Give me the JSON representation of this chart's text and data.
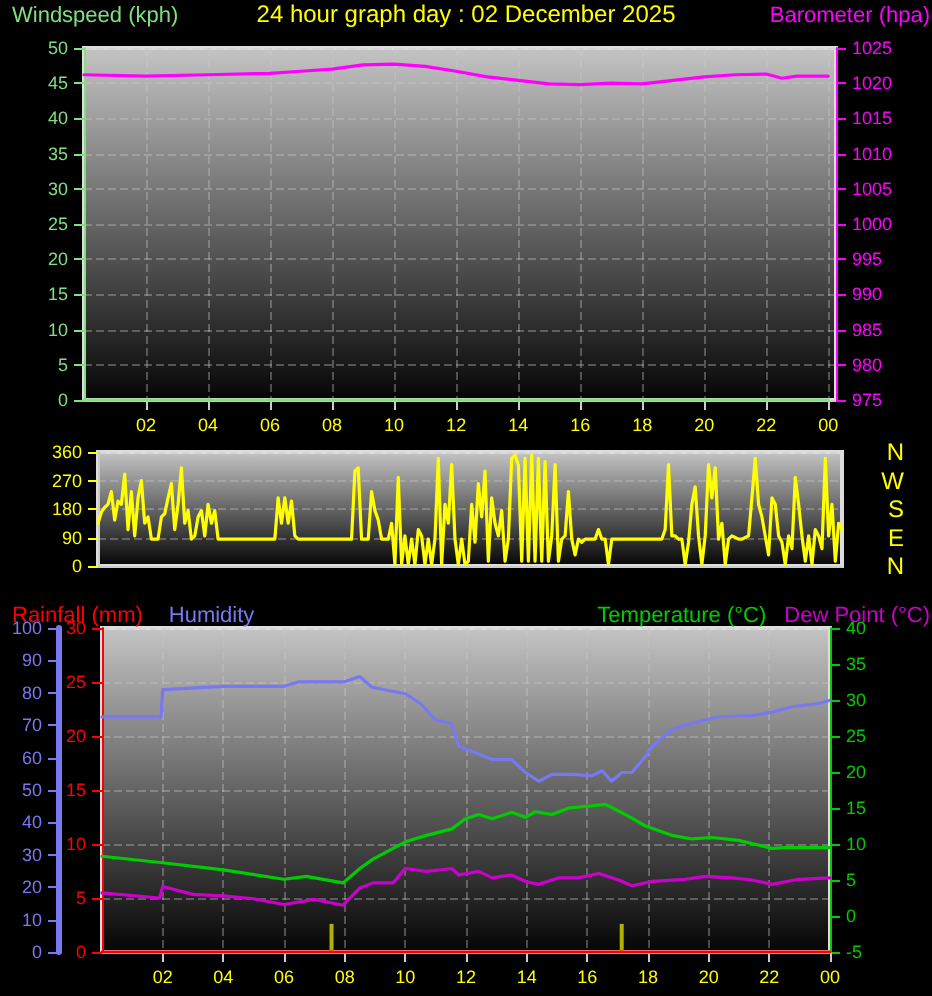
{
  "chart_data": [
    {
      "type": "line",
      "title": "24 hour graph day : 02 December 2025",
      "legend": "top",
      "grid": true,
      "marker": "none",
      "line_style": "solid",
      "xlim": [
        "2025-12-02T00:00",
        "2025-12-03T00:15"
      ],
      "xticks": [
        {
          "value": "2025-12-02T02:00",
          "label": "02"
        },
        {
          "value": "2025-12-02T04:00",
          "label": "04"
        },
        {
          "value": "2025-12-02T06:00",
          "label": "06"
        },
        {
          "value": "2025-12-02T08:00",
          "label": "08"
        },
        {
          "value": "2025-12-02T10:00",
          "label": "10"
        },
        {
          "value": "2025-12-02T12:00",
          "label": "12"
        },
        {
          "value": "2025-12-02T14:00",
          "label": "14"
        },
        {
          "value": "2025-12-02T16:00",
          "label": "16"
        },
        {
          "value": "2025-12-02T18:00",
          "label": "18"
        },
        {
          "value": "2025-12-02T20:00",
          "label": "20"
        },
        {
          "value": "2025-12-02T22:00",
          "label": "22"
        },
        {
          "value": "2025-12-03T00:00",
          "label": "00"
        }
      ],
      "ylim": [
        0,
        50
      ],
      "yticks": [
        0,
        5,
        10,
        15,
        20,
        25,
        30,
        35,
        40,
        45,
        50
      ],
      "y2lim": [
        975,
        1025
      ],
      "y2ticks": [
        975,
        980,
        985,
        990,
        995,
        1000,
        1005,
        1010,
        1015,
        1020,
        1025
      ],
      "series": [
        {
          "name": "Windspeed (kph)",
          "color": "#80e080",
          "x": [
            "2025-12-02T00:00",
            "2025-12-03T00:00"
          ],
          "values": [
            0,
            0
          ]
        },
        {
          "name": "Barometer (hpa)",
          "color": "#ff00ff",
          "axis": "y2",
          "x": [
            "2025-12-02T00:00",
            "2025-12-02T02:00",
            "2025-12-02T04:00",
            "2025-12-02T06:00",
            "2025-12-02T07:00",
            "2025-12-02T08:00",
            "2025-12-02T09:00",
            "2025-12-02T10:00",
            "2025-12-02T11:00",
            "2025-12-02T12:00",
            "2025-12-02T13:00",
            "2025-12-02T14:00",
            "2025-12-02T15:00",
            "2025-12-02T16:00",
            "2025-12-02T17:00",
            "2025-12-02T18:00",
            "2025-12-02T19:00",
            "2025-12-02T20:00",
            "2025-12-02T21:00",
            "2025-12-02T22:00",
            "2025-12-02T22:30",
            "2025-12-02T23:00",
            "2025-12-03T00:00"
          ],
          "values": [
            1021.2,
            1021.0,
            1021.2,
            1021.4,
            1021.7,
            1022.0,
            1022.6,
            1022.7,
            1022.4,
            1021.7,
            1020.9,
            1020.4,
            1019.9,
            1019.8,
            1020.0,
            1019.9,
            1020.4,
            1020.9,
            1021.2,
            1021.3,
            1020.7,
            1021.0,
            1021.0
          ]
        }
      ]
    },
    {
      "type": "line",
      "grid": "y",
      "marker": "none",
      "line_style": "solid",
      "tick_labels": "y",
      "categories": [
        null,
        null,
        null,
        null,
        null,
        null,
        null,
        null,
        null,
        null,
        null,
        null,
        null,
        null,
        null,
        null,
        null,
        null,
        null,
        null,
        null,
        null,
        null,
        null,
        null,
        null,
        null,
        null,
        null,
        null,
        null,
        null,
        null,
        null,
        null,
        null,
        null,
        null,
        null,
        null,
        null,
        null,
        null,
        null,
        null,
        null,
        null,
        null,
        null,
        null,
        null,
        null,
        null,
        null,
        null,
        null,
        null,
        null,
        null,
        null,
        null,
        null,
        null,
        null,
        null,
        null,
        null,
        null,
        null,
        null,
        null,
        null,
        null,
        null,
        null,
        null,
        null,
        null,
        null,
        null,
        null,
        null,
        null,
        null,
        null,
        null,
        null,
        null,
        null,
        null,
        null,
        null,
        null,
        null,
        null,
        null,
        null,
        null,
        null,
        null,
        null,
        null,
        null,
        null,
        null,
        null,
        null,
        null,
        null,
        null,
        null,
        null,
        null,
        null,
        null,
        null,
        null,
        null,
        null,
        null,
        null,
        null,
        null,
        null,
        null,
        null,
        null,
        null,
        null,
        null,
        null,
        null,
        null,
        null,
        null,
        null,
        null,
        null,
        null,
        null,
        null,
        null,
        null,
        null,
        null,
        null,
        null,
        null,
        null,
        null,
        null,
        null,
        null,
        null,
        null,
        null,
        null,
        null,
        null,
        null,
        null,
        null,
        null,
        null,
        null,
        null,
        null,
        null,
        null,
        null,
        null,
        null,
        null,
        null,
        null,
        null,
        null,
        null,
        null,
        null,
        null,
        null,
        null,
        null,
        null,
        null,
        null,
        null,
        null,
        null,
        null,
        null,
        null,
        null,
        null,
        null,
        null,
        null,
        null,
        null,
        null,
        null,
        null,
        null,
        null,
        null,
        null,
        null,
        null,
        null,
        null,
        null,
        null,
        null,
        null,
        null,
        null,
        null,
        null,
        null,
        null,
        null,
        null,
        null
      ],
      "ylim": [
        0,
        360
      ],
      "yticks": [
        0,
        90,
        180,
        270,
        360
      ],
      "annotations": [
        "N",
        "W",
        "S",
        "E",
        "N"
      ],
      "series": [
        {
          "color": "#ffff00",
          "values": [
            135,
            170,
            185,
            195,
            235,
            145,
            205,
            195,
            290,
            115,
            235,
            95,
            215,
            270,
            135,
            155,
            85,
            85,
            85,
            155,
            165,
            215,
            260,
            115,
            195,
            310,
            135,
            175,
            85,
            95,
            155,
            175,
            95,
            195,
            135,
            175,
            85,
            85,
            85,
            85,
            85,
            85,
            85,
            85,
            85,
            85,
            85,
            85,
            85,
            85,
            85,
            85,
            85,
            85,
            215,
            135,
            215,
            135,
            205,
            95,
            85,
            85,
            85,
            85,
            85,
            85,
            85,
            85,
            85,
            85,
            85,
            85,
            85,
            85,
            85,
            85,
            85,
            300,
            310,
            85,
            85,
            85,
            235,
            175,
            145,
            85,
            85,
            85,
            135,
            5,
            280,
            5,
            95,
            5,
            85,
            5,
            115,
            95,
            5,
            85,
            5,
            85,
            340,
            5,
            195,
            135,
            320,
            85,
            5,
            85,
            5,
            15,
            195,
            75,
            260,
            155,
            300,
            15,
            215,
            135,
            95,
            175,
            15,
            85,
            340,
            350,
            320,
            15,
            340,
            15,
            350,
            15,
            340,
            15,
            330,
            15,
            95,
            320,
            15,
            85,
            95,
            235,
            85,
            35,
            85,
            75,
            85,
            85,
            85,
            85,
            115,
            85,
            85,
            5,
            85,
            85,
            85,
            85,
            85,
            85,
            85,
            85,
            85,
            85,
            85,
            85,
            85,
            85,
            85,
            85,
            115,
            320,
            95,
            95,
            85,
            85,
            5,
            75,
            195,
            250,
            95,
            5,
            95,
            320,
            215,
            310,
            85,
            135,
            5,
            85,
            95,
            90,
            85,
            85,
            90,
            95,
            215,
            340,
            195,
            155,
            95,
            35,
            215,
            195,
            95,
            75,
            5,
            95,
            55,
            280,
            195,
            95,
            15,
            95,
            5,
            115,
            95,
            55,
            340,
            95,
            195,
            15,
            135,
            115
          ]
        }
      ]
    },
    {
      "type": "line",
      "legend": "top",
      "grid": true,
      "marker": "none",
      "line_style": "solid",
      "xlim": [
        "2025-12-02T00:00",
        "2025-12-03T00:00"
      ],
      "xticks": [
        {
          "value": "2025-12-02T02:00",
          "label": "02"
        },
        {
          "value": "2025-12-02T04:00",
          "label": "04"
        },
        {
          "value": "2025-12-02T06:00",
          "label": "06"
        },
        {
          "value": "2025-12-02T08:00",
          "label": "08"
        },
        {
          "value": "2025-12-02T10:00",
          "label": "10"
        },
        {
          "value": "2025-12-02T12:00",
          "label": "12"
        },
        {
          "value": "2025-12-02T14:00",
          "label": "14"
        },
        {
          "value": "2025-12-02T16:00",
          "label": "16"
        },
        {
          "value": "2025-12-02T18:00",
          "label": "18"
        },
        {
          "value": "2025-12-02T20:00",
          "label": "20"
        },
        {
          "value": "2025-12-02T22:00",
          "label": "22"
        },
        {
          "value": "2025-12-03T00:00",
          "label": "00"
        }
      ],
      "ylim": [
        0,
        30
      ],
      "yticks": [
        0,
        5,
        10,
        15,
        20,
        25,
        30
      ],
      "y3lim": [
        0,
        100
      ],
      "y3ticks": [
        0,
        10,
        20,
        30,
        40,
        50,
        60,
        70,
        80,
        90,
        100
      ],
      "y2lim": [
        -5,
        40
      ],
      "y2ticks": [
        -5,
        0,
        5,
        10,
        15,
        20,
        25,
        30,
        35,
        40
      ],
      "series": [
        {
          "name": "Rainfall (mm)",
          "color": "#ff0000",
          "x": [
            "2025-12-02T00:00",
            "2025-12-03T00:00"
          ],
          "values": [
            0,
            0
          ]
        },
        {
          "name": "Humidity",
          "color": "#7878f0",
          "axis": "y3",
          "x": [
            "2025-12-02T00:00",
            "2025-12-02T01:57",
            "2025-12-02T02:00",
            "2025-12-02T04:00",
            "2025-12-02T06:00",
            "2025-12-02T06:30",
            "2025-12-02T08:00",
            "2025-12-02T08:30",
            "2025-12-02T08:54",
            "2025-12-02T10:00",
            "2025-12-02T10:30",
            "2025-12-02T11:00",
            "2025-12-02T11:30",
            "2025-12-02T11:46",
            "2025-12-02T12:52",
            "2025-12-02T13:30",
            "2025-12-02T13:58",
            "2025-12-02T14:24",
            "2025-12-02T14:50",
            "2025-12-02T15:30",
            "2025-12-02T16:09",
            "2025-12-02T16:29",
            "2025-12-02T16:48",
            "2025-12-02T17:08",
            "2025-12-02T17:28",
            "2025-12-02T17:55",
            "2025-12-02T18:08",
            "2025-12-02T18:47",
            "2025-12-02T19:27",
            "2025-12-02T20:20",
            "2025-12-02T21:26",
            "2025-12-02T22:05",
            "2025-12-02T22:45",
            "2025-12-02T23:38",
            "2025-12-03T00:00"
          ],
          "values": [
            72.6,
            72.6,
            81,
            82,
            82,
            83.4,
            83.4,
            85,
            81.7,
            79.7,
            76.7,
            71.6,
            70.6,
            63.5,
            59.4,
            59.4,
            55.4,
            52.7,
            54.8,
            54.8,
            54.4,
            56,
            52.7,
            55.4,
            55.4,
            60.4,
            63.5,
            68.6,
            70.6,
            72.6,
            73,
            74,
            75.7,
            76.7,
            77.7
          ]
        },
        {
          "name": "Temperature (°C)",
          "color": "#00cc00",
          "axis": "y2",
          "x": [
            "2025-12-02T00:00",
            "2025-12-02T02:00",
            "2025-12-02T04:00",
            "2025-12-02T06:00",
            "2025-12-02T06:44",
            "2025-12-02T07:57",
            "2025-12-02T08:30",
            "2025-12-02T08:56",
            "2025-12-02T09:36",
            "2025-12-02T10:00",
            "2025-12-02T10:42",
            "2025-12-02T11:32",
            "2025-12-02T11:59",
            "2025-12-02T12:25",
            "2025-12-02T12:52",
            "2025-12-02T13:30",
            "2025-12-02T13:58",
            "2025-12-02T14:17",
            "2025-12-02T14:50",
            "2025-12-02T15:23",
            "2025-12-02T16:09",
            "2025-12-02T16:36",
            "2025-12-02T17:15",
            "2025-12-02T17:55",
            "2025-12-02T18:47",
            "2025-12-02T19:27",
            "2025-12-02T20:06",
            "2025-12-02T20:59",
            "2025-12-02T22:05",
            "2025-12-02T22:32",
            "2025-12-03T00:00"
          ],
          "values": [
            8.3,
            7.4,
            6.4,
            5.1,
            5.5,
            4.6,
            6.6,
            7.9,
            9.4,
            10.3,
            11.2,
            12.1,
            13.5,
            14.1,
            13.5,
            14.4,
            13.7,
            14.5,
            14.1,
            15,
            15.3,
            15.5,
            14.1,
            12.5,
            11.2,
            10.7,
            10.9,
            10.5,
            9.4,
            9.5,
            9.5
          ]
        },
        {
          "name": "Dew Point (°C)",
          "color": "#cc00cc",
          "axis": "y2",
          "x": [
            "2025-12-02T00:00",
            "2025-12-02T01:54",
            "2025-12-02T02:00",
            "2025-12-02T03:00",
            "2025-12-02T04:00",
            "2025-12-02T05:00",
            "2025-12-02T06:00",
            "2025-12-02T07:00",
            "2025-12-02T07:57",
            "2025-12-02T08:30",
            "2025-12-02T08:56",
            "2025-12-02T09:36",
            "2025-12-02T10:00",
            "2025-12-02T10:42",
            "2025-12-02T11:32",
            "2025-12-02T11:46",
            "2025-12-02T12:25",
            "2025-12-02T12:52",
            "2025-12-02T13:30",
            "2025-12-02T13:58",
            "2025-12-02T14:24",
            "2025-12-02T15:04",
            "2025-12-02T15:42",
            "2025-12-02T16:23",
            "2025-12-02T17:02",
            "2025-12-02T17:28",
            "2025-12-02T18:08",
            "2025-12-02T19:14",
            "2025-12-02T19:53",
            "2025-12-02T20:46",
            "2025-12-02T21:26",
            "2025-12-02T22:05",
            "2025-12-02T22:58",
            "2025-12-03T00:00"
          ],
          "values": [
            3.2,
            2.5,
            4.1,
            3,
            2.8,
            2.4,
            1.6,
            2.3,
            1.5,
            3.9,
            4.6,
            4.6,
            6.6,
            6.2,
            6.6,
            5.7,
            6.2,
            5.3,
            5.7,
            4.8,
            4.4,
            5.3,
            5.3,
            5.9,
            5,
            4.2,
            4.8,
            5.1,
            5.5,
            5.3,
            5,
            4.4,
            5.1,
            5.3
          ]
        },
        {
          "type": "bar",
          "color": "#b0b000",
          "x": [
            "2025-12-02T07:34",
            "2025-12-02T17:08"
          ],
          "values": [
            2.6,
            2.6
          ]
        }
      ]
    }
  ]
}
